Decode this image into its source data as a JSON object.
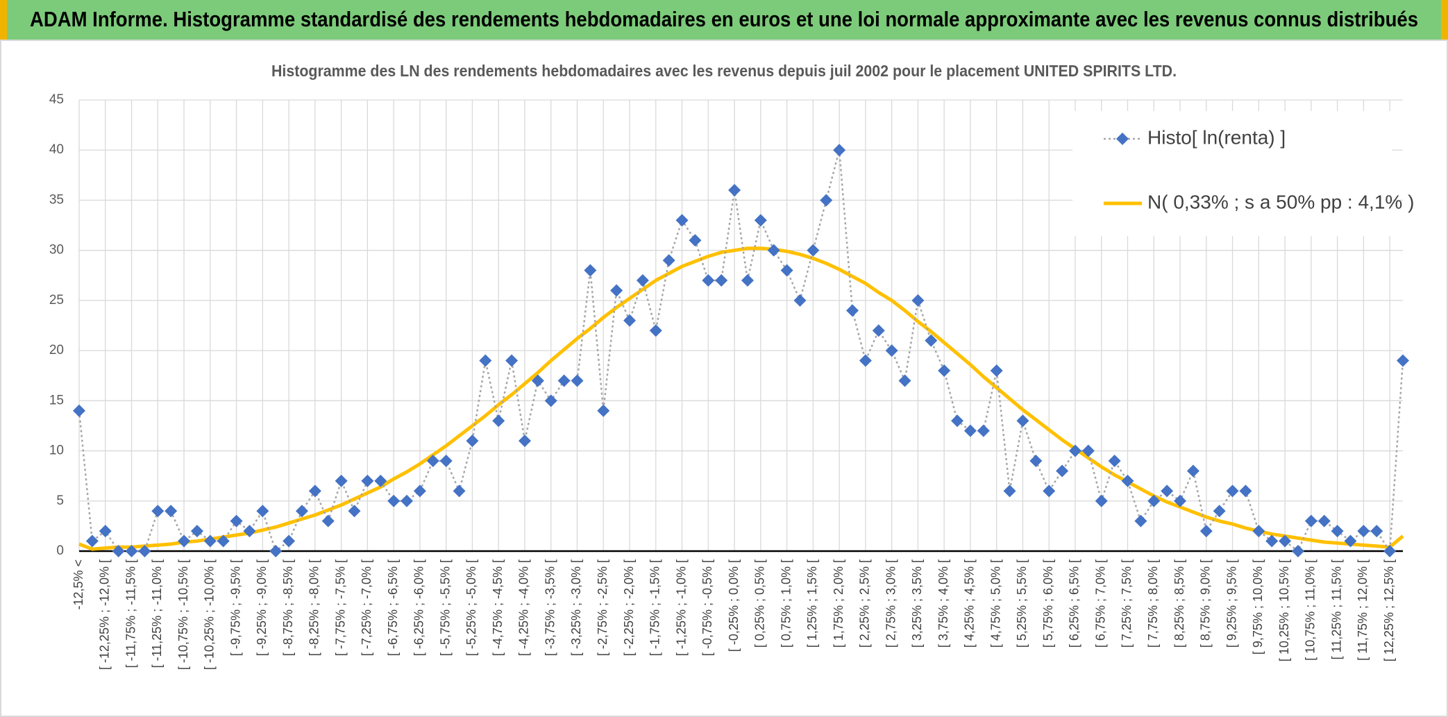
{
  "chart_data": {
    "type": "line",
    "title": "ADAM Informe. Histogramme standardisé des rendements hebdomadaires en euros et une loi normale approximante avec les revenus connus distribués",
    "subtitle": "Histogramme des LN des rendements hebdomadaires avec les revenus depuis juil 2002 pour le placement UNITED SPIRITS LTD.",
    "categories": [
      "-12,5% <",
      null,
      "[ -12,25% ; -12,0% [",
      null,
      "[ -11,75% ; -11,5% [",
      null,
      "[ -11,25% ; -11,0% [",
      null,
      "[ -10,75% ; -10,5% [",
      null,
      "[ -10,25% ; -10,0% [",
      null,
      "[ -9,75% ; -9,5% [",
      null,
      "[ -9,25% ; -9,0% [",
      null,
      "[ -8,75% ; -8,5% [",
      null,
      "[ -8,25% ; -8,0% [",
      null,
      "[ -7,75% ; -7,5% [",
      null,
      "[ -7,25% ; -7,0% [",
      null,
      "[ -6,75% ; -6,5% [",
      null,
      "[ -6,25% ; -6,0% [",
      null,
      "[ -5,75% ; -5,5% [",
      null,
      "[ -5,25% ; -5,0% [",
      null,
      "[ -4,75% ; -4,5% [",
      null,
      "[ -4,25% ; -4,0% [",
      null,
      "[ -3,75% ; -3,5% [",
      null,
      "[ -3,25% ; -3,0% [",
      null,
      "[ -2,75% ; -2,5% [",
      null,
      "[ -2,25% ; -2,0% [",
      null,
      "[ -1,75% ; -1,5% [",
      null,
      "[ -1,25% ; -1,0% [",
      null,
      "[ -0,75% ; -0,5% [",
      null,
      "[ -0,25% ; 0,0% [",
      null,
      "[ 0,25% ; 0,5% [",
      null,
      "[ 0,75% ; 1,0% [",
      null,
      "[ 1,25% ; 1,5% [",
      null,
      "[ 1,75% ; 2,0% [",
      null,
      "[ 2,25% ; 2,5% [",
      null,
      "[ 2,75% ; 3,0% [",
      null,
      "[ 3,25% ; 3,5% [",
      null,
      "[ 3,75% ; 4,0% [",
      null,
      "[ 4,25% ; 4,5% [",
      null,
      "[ 4,75% ; 5,0% [",
      null,
      "[ 5,25% ; 5,5% [",
      null,
      "[ 5,75% ; 6,0% [",
      null,
      "[ 6,25% ; 6,5% [",
      null,
      "[ 6,75% ; 7,0% [",
      null,
      "[ 7,25% ; 7,5% [",
      null,
      "[ 7,75% ; 8,0% [",
      null,
      "[ 8,25% ; 8,5% [",
      null,
      "[ 8,75% ; 9,0% [",
      null,
      "[ 9,25% ; 9,5% [",
      null,
      "[ 9,75% ; 10,0% [",
      null,
      "[ 10,25% ; 10,5% [",
      null,
      "[ 10,75% ; 11,0% [",
      null,
      "[ 11,25% ; 11,5% [",
      null,
      "[ 11,75% ; 12,0% [",
      null,
      "[ 12,25% ; 12,5% [",
      null
    ],
    "series": [
      {
        "name": "Histo[ ln(renta) ]",
        "color": "#4472c4",
        "line_color": "#a5a5a5",
        "line_style": "dotted",
        "marker": "diamond",
        "values": [
          14,
          1,
          2,
          0,
          0,
          0,
          4,
          4,
          1,
          2,
          1,
          1,
          3,
          2,
          4,
          0,
          1,
          4,
          6,
          3,
          7,
          4,
          7,
          7,
          5,
          5,
          6,
          9,
          9,
          6,
          11,
          19,
          13,
          19,
          11,
          17,
          15,
          17,
          17,
          28,
          14,
          26,
          23,
          27,
          22,
          29,
          33,
          31,
          27,
          27,
          36,
          27,
          33,
          30,
          28,
          25,
          30,
          35,
          40,
          24,
          19,
          22,
          20,
          17,
          25,
          21,
          18,
          13,
          12,
          12,
          18,
          6,
          13,
          9,
          6,
          8,
          10,
          10,
          5,
          9,
          7,
          3,
          5,
          6,
          5,
          8,
          2,
          4,
          6,
          6,
          2,
          1,
          1,
          0,
          3,
          3,
          2,
          1,
          2,
          2,
          0,
          19
        ]
      },
      {
        "name": "N( 0,33% ; s a 50% pp : 4,1% )",
        "color": "#ffc000",
        "line_style": "solid",
        "marker": "none",
        "values": [
          0.7,
          0.2,
          0.3,
          0.4,
          0.4,
          0.5,
          0.6,
          0.7,
          0.9,
          1.0,
          1.2,
          1.4,
          1.6,
          1.8,
          2.1,
          2.4,
          2.8,
          3.2,
          3.6,
          4.1,
          4.6,
          5.2,
          5.8,
          6.4,
          7.2,
          7.9,
          8.7,
          9.6,
          10.5,
          11.5,
          12.5,
          13.5,
          14.6,
          15.6,
          16.7,
          17.8,
          19.0,
          20.1,
          21.2,
          22.2,
          23.3,
          24.3,
          25.2,
          26.1,
          27.0,
          27.7,
          28.4,
          28.9,
          29.4,
          29.8,
          30.0,
          30.2,
          30.2,
          30.1,
          29.9,
          29.6,
          29.2,
          28.7,
          28.1,
          27.4,
          26.7,
          25.8,
          25.0,
          24.0,
          22.9,
          21.9,
          20.8,
          19.7,
          18.6,
          17.4,
          16.3,
          15.2,
          14.1,
          13.1,
          12.1,
          11.1,
          10.2,
          9.3,
          8.4,
          7.6,
          6.9,
          6.2,
          5.5,
          4.9,
          4.4,
          3.9,
          3.4,
          3.0,
          2.7,
          2.3,
          2.0,
          1.7,
          1.5,
          1.3,
          1.1,
          0.9,
          0.8,
          0.7,
          0.6,
          0.5,
          0.4,
          1.5
        ]
      }
    ],
    "ylim": [
      0,
      45
    ],
    "yticks": [
      0,
      5,
      10,
      15,
      20,
      25,
      30,
      35,
      40,
      45
    ],
    "grid": true,
    "legend": "upper right"
  }
}
